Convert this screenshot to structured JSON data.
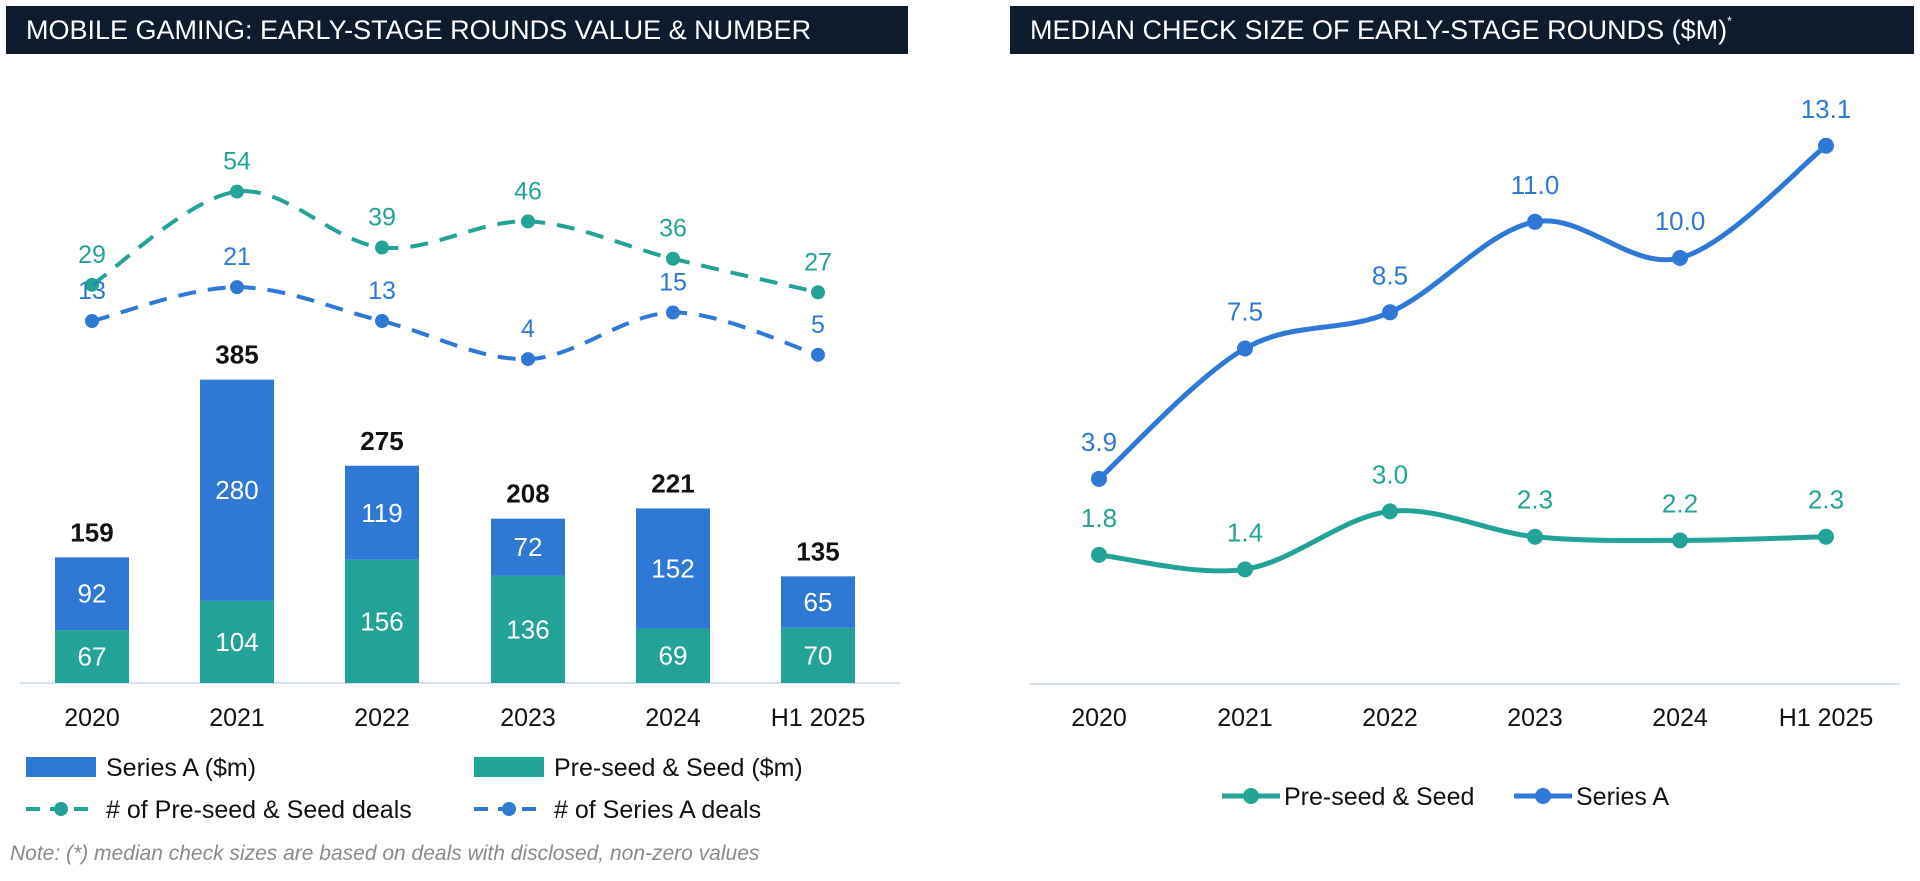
{
  "colors": {
    "series_a": "#2f78d6",
    "seed": "#23a397",
    "title_bg": "#0e1b2c",
    "axis": "#c8d8ee"
  },
  "left_panel": {
    "title": "MOBILE GAMING: EARLY-STAGE ROUNDS VALUE & NUMBER"
  },
  "right_panel": {
    "title": "MEDIAN CHECK SIZE OF EARLY-STAGE ROUNDS ($M)",
    "title_mark": "*"
  },
  "note": "Note: (*) median check sizes are based on deals with disclosed, non-zero values",
  "chart_data": [
    {
      "type": "bar",
      "stacked": true,
      "categories": [
        "2020",
        "2021",
        "2022",
        "2023",
        "2024",
        "H1 2025"
      ],
      "series": [
        {
          "name": "Pre-seed & Seed ($m)",
          "values": [
            67,
            104,
            156,
            136,
            69,
            70
          ]
        },
        {
          "name": "Series A ($m)",
          "values": [
            92,
            280,
            119,
            72,
            152,
            65
          ]
        }
      ],
      "totals": [
        159,
        385,
        275,
        208,
        221,
        135
      ],
      "lines": [
        {
          "name": "# of Pre-seed & Seed deals",
          "values": [
            29,
            54,
            39,
            46,
            36,
            27
          ]
        },
        {
          "name": "# of Series A deals",
          "values": [
            13,
            21,
            13,
            4,
            15,
            5
          ]
        }
      ],
      "legend": [
        "Series A ($m)",
        "Pre-seed & Seed ($m)",
        "# of Pre-seed & Seed deals",
        "# of Series A deals"
      ],
      "legend_placement": "bottom",
      "grid": false
    },
    {
      "type": "line",
      "categories": [
        "2020",
        "2021",
        "2022",
        "2023",
        "2024",
        "H1 2025"
      ],
      "series": [
        {
          "name": "Pre-seed & Seed",
          "values": [
            1.8,
            1.4,
            3.0,
            2.3,
            2.2,
            2.3
          ],
          "labels": [
            "1.8",
            "1.4",
            "3.0",
            "2.3",
            "2.2",
            "2.3"
          ]
        },
        {
          "name": "Series A",
          "values": [
            3.9,
            7.5,
            8.5,
            11.0,
            10.0,
            13.1
          ],
          "labels": [
            "3.9",
            "7.5",
            "8.5",
            "11.0",
            "10.0",
            "13.1"
          ]
        }
      ],
      "legend": [
        "Pre-seed & Seed",
        "Series A"
      ],
      "legend_placement": "bottom",
      "grid": false
    }
  ]
}
